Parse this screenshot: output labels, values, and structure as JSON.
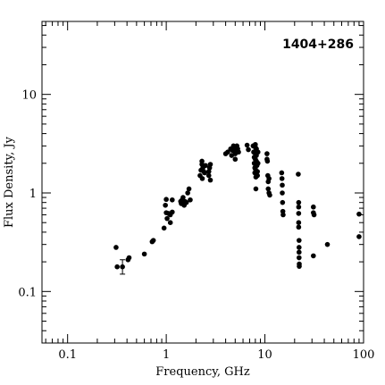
{
  "chart_data": {
    "type": "scatter",
    "title": "1404+286",
    "xlabel": "Frequency, GHz",
    "ylabel": "Flux Density, Jy",
    "xscale": "log",
    "yscale": "log",
    "xlim": [
      0.055,
      100
    ],
    "ylim": [
      0.03,
      55
    ],
    "grid": false,
    "x_ticks": [
      0.1,
      1,
      10,
      100
    ],
    "x_tick_labels": [
      "0.1",
      "1",
      "10",
      "100"
    ],
    "y_ticks": [
      0.1,
      1,
      10
    ],
    "y_tick_labels": [
      "0.1",
      "1",
      "10"
    ],
    "title_position": "top-right",
    "points": [
      [
        0.31,
        0.28
      ],
      [
        0.318,
        0.178
      ],
      [
        0.36,
        0.178
      ],
      [
        0.41,
        0.21
      ],
      [
        0.42,
        0.22
      ],
      [
        0.6,
        0.24
      ],
      [
        0.72,
        0.32
      ],
      [
        0.74,
        0.33
      ],
      [
        0.95,
        0.44
      ],
      [
        0.98,
        0.75
      ],
      [
        1.0,
        0.86
      ],
      [
        1.0,
        0.63
      ],
      [
        1.02,
        0.55
      ],
      [
        1.05,
        0.62
      ],
      [
        1.1,
        0.6
      ],
      [
        1.1,
        0.5
      ],
      [
        1.15,
        0.85
      ],
      [
        1.15,
        0.64
      ],
      [
        1.4,
        0.82
      ],
      [
        1.42,
        0.78
      ],
      [
        1.45,
        0.85
      ],
      [
        1.48,
        0.9
      ],
      [
        1.5,
        0.8
      ],
      [
        1.52,
        0.75
      ],
      [
        1.55,
        0.82
      ],
      [
        1.6,
        0.8
      ],
      [
        1.65,
        1.0
      ],
      [
        1.7,
        1.1
      ],
      [
        1.75,
        0.85
      ],
      [
        2.2,
        1.5
      ],
      [
        2.25,
        1.7
      ],
      [
        2.3,
        1.95
      ],
      [
        2.3,
        2.1
      ],
      [
        2.32,
        1.4
      ],
      [
        2.35,
        1.8
      ],
      [
        2.4,
        1.65
      ],
      [
        2.45,
        1.6
      ],
      [
        2.5,
        1.9
      ],
      [
        2.7,
        1.5
      ],
      [
        2.7,
        1.65
      ],
      [
        2.75,
        1.8
      ],
      [
        2.8,
        1.95
      ],
      [
        2.8,
        1.35
      ],
      [
        4.0,
        2.5
      ],
      [
        4.2,
        2.6
      ],
      [
        4.5,
        2.8
      ],
      [
        4.6,
        2.4
      ],
      [
        4.7,
        2.7
      ],
      [
        4.8,
        3.0
      ],
      [
        4.9,
        2.9
      ],
      [
        5.0,
        2.5
      ],
      [
        5.0,
        2.2
      ],
      [
        5.1,
        2.7
      ],
      [
        5.2,
        3.0
      ],
      [
        5.3,
        2.8
      ],
      [
        5.4,
        2.6
      ],
      [
        6.6,
        3.05
      ],
      [
        6.8,
        2.75
      ],
      [
        7.6,
        3.0
      ],
      [
        7.7,
        2.6
      ],
      [
        7.8,
        2.3
      ],
      [
        7.8,
        2.0
      ],
      [
        7.9,
        1.8
      ],
      [
        7.9,
        1.6
      ],
      [
        8.0,
        3.1
      ],
      [
        8.0,
        2.9
      ],
      [
        8.0,
        2.5
      ],
      [
        8.0,
        2.2
      ],
      [
        8.0,
        1.95
      ],
      [
        8.0,
        1.75
      ],
      [
        8.1,
        1.45
      ],
      [
        8.1,
        1.1
      ],
      [
        8.2,
        2.8
      ],
      [
        8.2,
        2.4
      ],
      [
        8.2,
        2.1
      ],
      [
        8.3,
        1.9
      ],
      [
        8.4,
        1.65
      ],
      [
        8.4,
        1.5
      ],
      [
        8.5,
        2.6
      ],
      [
        8.5,
        2.0
      ],
      [
        10.5,
        2.5
      ],
      [
        10.5,
        2.2
      ],
      [
        10.6,
        2.1
      ],
      [
        10.7,
        1.5
      ],
      [
        10.8,
        1.3
      ],
      [
        10.8,
        1.1
      ],
      [
        11.0,
        1.4
      ],
      [
        11.0,
        1.0
      ],
      [
        11.2,
        0.95
      ],
      [
        14.8,
        1.6
      ],
      [
        14.9,
        1.4
      ],
      [
        15.0,
        1.2
      ],
      [
        15.0,
        1.0
      ],
      [
        15.1,
        0.8
      ],
      [
        15.2,
        0.65
      ],
      [
        15.3,
        0.6
      ],
      [
        21.8,
        1.55
      ],
      [
        22.0,
        0.8
      ],
      [
        22.0,
        0.72
      ],
      [
        22.0,
        0.62
      ],
      [
        22.0,
        0.5
      ],
      [
        22.0,
        0.45
      ],
      [
        22.2,
        0.33
      ],
      [
        22.2,
        0.28
      ],
      [
        22.2,
        0.25
      ],
      [
        22.2,
        0.22
      ],
      [
        22.3,
        0.19
      ],
      [
        22.3,
        0.18
      ],
      [
        31.0,
        0.72
      ],
      [
        31.0,
        0.63
      ],
      [
        31.5,
        0.6
      ],
      [
        31.0,
        0.23
      ],
      [
        43.0,
        0.3
      ],
      [
        90.0,
        0.61
      ],
      [
        90.0,
        0.36
      ]
    ],
    "error_bars": [
      {
        "x": 0.36,
        "y": 0.178,
        "ylow": 0.15,
        "yhigh": 0.21
      }
    ]
  }
}
